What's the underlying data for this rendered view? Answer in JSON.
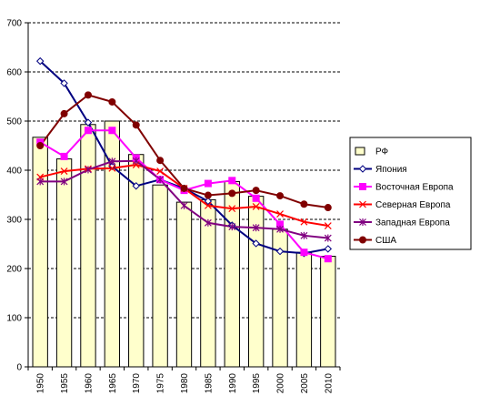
{
  "chart_data": {
    "type": "bar+line",
    "categories": [
      "1950",
      "1955",
      "1960",
      "1965",
      "1970",
      "1975",
      "1980",
      "1985",
      "1990",
      "1995",
      "2000",
      "2005",
      "2010"
    ],
    "ylim": [
      0,
      700
    ],
    "yticks": [
      "0",
      "100",
      "200",
      "300",
      "400",
      "500",
      "600",
      "700"
    ],
    "grid": "horizontal dashed",
    "legend_position": "right",
    "bar_series": {
      "name": "РФ",
      "color": "#FFFFCC",
      "values": [
        467,
        423,
        493,
        500,
        432,
        370,
        335,
        340,
        377,
        347,
        280,
        233,
        225
      ]
    },
    "line_series": [
      {
        "name": "Япония",
        "color": "#000080",
        "marker": "diamond-open",
        "values": [
          622,
          577,
          497,
          408,
          368,
          381,
          363,
          337,
          288,
          251,
          235,
          231,
          240
        ]
      },
      {
        "name": "Восточная Европа",
        "color": "#FF00FF",
        "marker": "square",
        "values": [
          457,
          428,
          481,
          481,
          425,
          381,
          359,
          373,
          379,
          343,
          290,
          233,
          220
        ]
      },
      {
        "name": "Северная Европа",
        "color": "#FF0000",
        "marker": "x",
        "values": [
          386,
          398,
          403,
          404,
          411,
          398,
          363,
          328,
          322,
          326,
          311,
          295,
          287
        ]
      },
      {
        "name": "Западная Европа",
        "color": "#800080",
        "marker": "asterisk",
        "values": [
          377,
          377,
          401,
          418,
          419,
          381,
          328,
          293,
          285,
          283,
          280,
          267,
          262
        ]
      },
      {
        "name": "США",
        "color": "#800000",
        "marker": "circle",
        "values": [
          450,
          515,
          553,
          539,
          492,
          420,
          363,
          349,
          353,
          359,
          348,
          331,
          324
        ]
      }
    ]
  }
}
